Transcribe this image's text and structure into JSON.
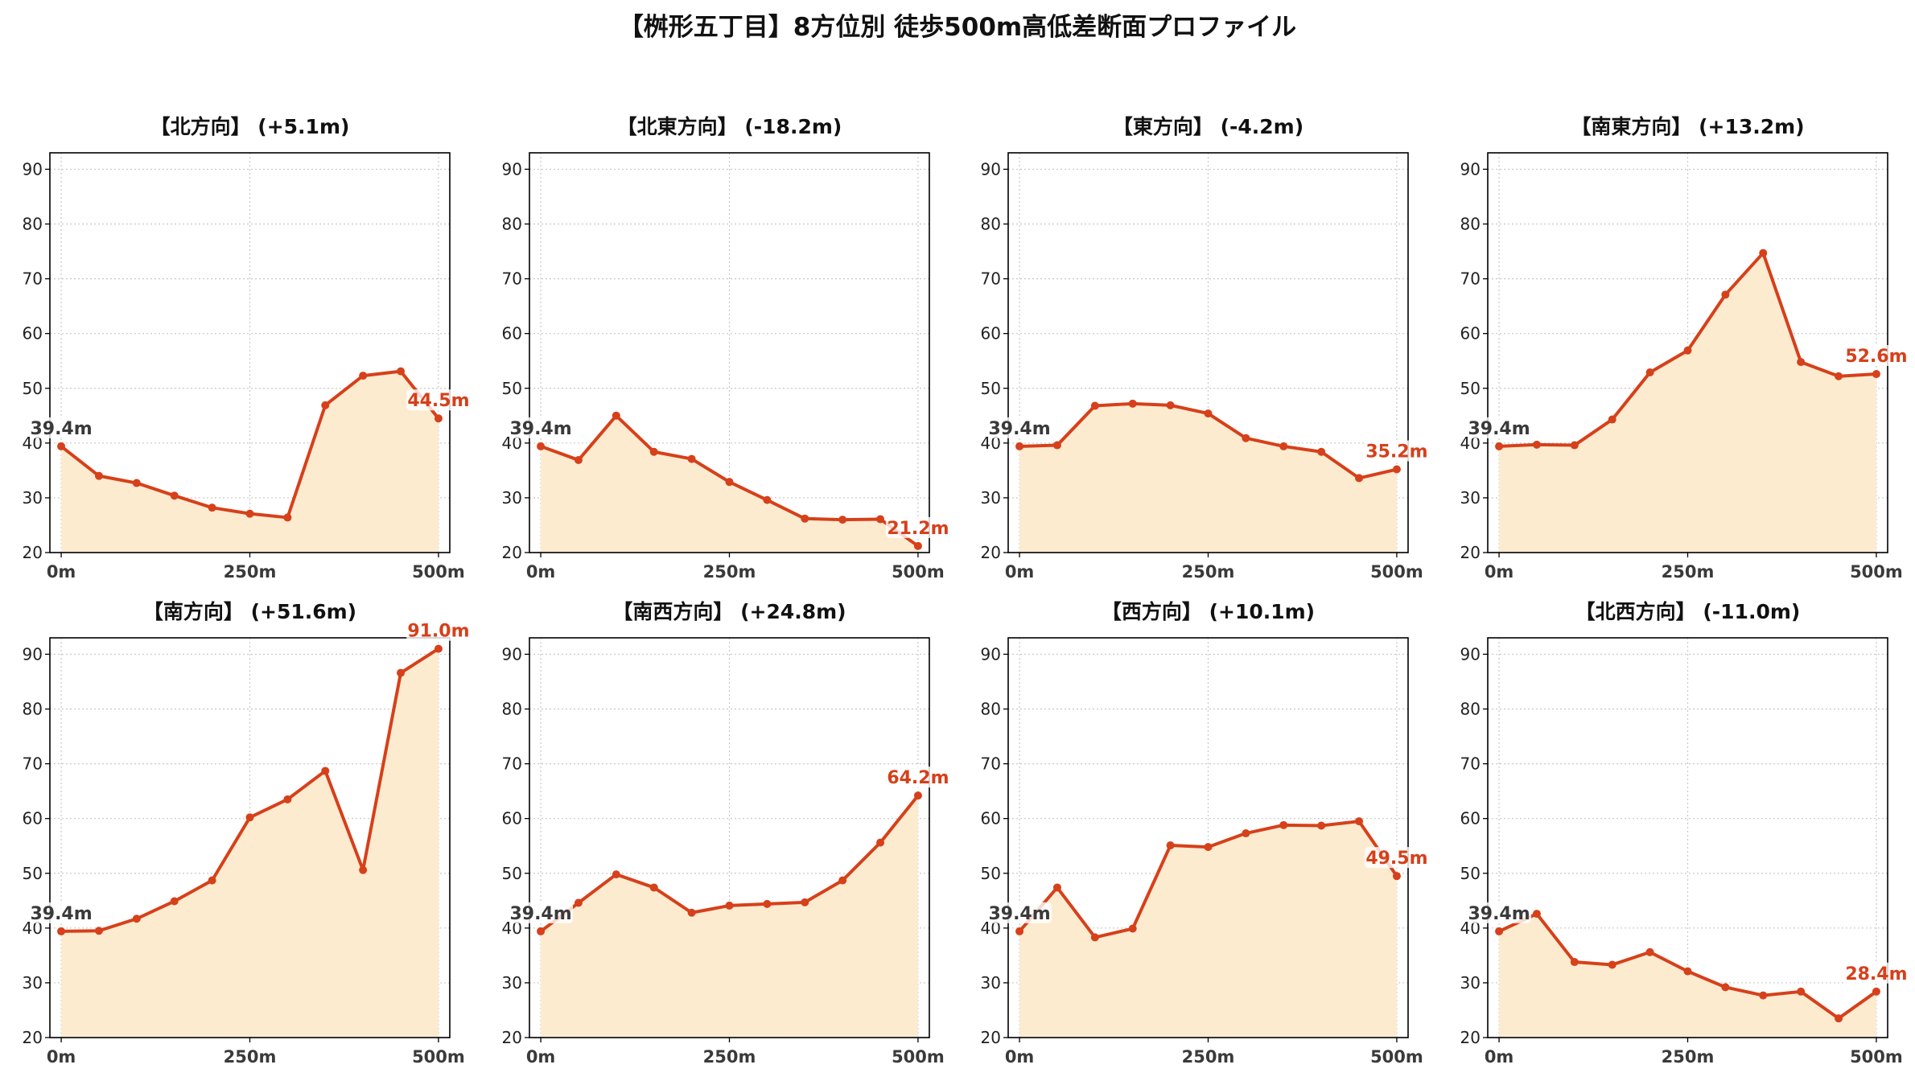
{
  "figure": {
    "title": "【桝形五丁目】8方位別 徒歩500m高低差断面プロファイル"
  },
  "colors": {
    "line": "#d6401a",
    "fill": "#fdebd0",
    "start_label": "#3a3a3a",
    "end_label": "#d6401a",
    "grid": "#c8c8c8",
    "axis": "#000000"
  },
  "chart_data": [
    {
      "type": "area",
      "title": "【北方向】 (+5.1m)",
      "x": [
        0,
        50,
        100,
        150,
        200,
        250,
        300,
        350,
        400,
        450,
        500
      ],
      "values": [
        39.4,
        34.0,
        32.7,
        30.4,
        28.2,
        27.1,
        26.4,
        46.9,
        52.3,
        53.1,
        44.5
      ],
      "start_label": "39.4m",
      "end_label": "44.5m",
      "xticks": [
        "0m",
        "250m",
        "500m"
      ],
      "yticks": [
        "20",
        "30",
        "40",
        "50",
        "60",
        "70",
        "80",
        "90"
      ],
      "xlim": [
        0,
        500
      ],
      "ylim": [
        20,
        93
      ],
      "grid": true
    },
    {
      "type": "area",
      "title": "【北東方向】 (-18.2m)",
      "x": [
        0,
        50,
        100,
        150,
        200,
        250,
        300,
        350,
        400,
        450,
        500
      ],
      "values": [
        39.4,
        36.9,
        45.0,
        38.4,
        37.1,
        32.9,
        29.6,
        26.2,
        26.0,
        26.1,
        21.2
      ],
      "start_label": "39.4m",
      "end_label": "21.2m",
      "xticks": [
        "0m",
        "250m",
        "500m"
      ],
      "yticks": [
        "20",
        "30",
        "40",
        "50",
        "60",
        "70",
        "80",
        "90"
      ],
      "xlim": [
        0,
        500
      ],
      "ylim": [
        20,
        93
      ],
      "grid": true
    },
    {
      "type": "area",
      "title": "【東方向】 (-4.2m)",
      "x": [
        0,
        50,
        100,
        150,
        200,
        250,
        300,
        350,
        400,
        450,
        500
      ],
      "values": [
        39.4,
        39.6,
        46.8,
        47.2,
        46.9,
        45.4,
        40.9,
        39.4,
        38.4,
        33.6,
        35.2
      ],
      "start_label": "39.4m",
      "end_label": "35.2m",
      "xticks": [
        "0m",
        "250m",
        "500m"
      ],
      "yticks": [
        "20",
        "30",
        "40",
        "50",
        "60",
        "70",
        "80",
        "90"
      ],
      "xlim": [
        0,
        500
      ],
      "ylim": [
        20,
        93
      ],
      "grid": true
    },
    {
      "type": "area",
      "title": "【南東方向】 (+13.2m)",
      "x": [
        0,
        50,
        100,
        150,
        200,
        250,
        300,
        350,
        400,
        450,
        500
      ],
      "values": [
        39.4,
        39.7,
        39.6,
        44.3,
        52.9,
        56.9,
        67.1,
        74.7,
        54.8,
        52.2,
        52.6
      ],
      "start_label": "39.4m",
      "end_label": "52.6m",
      "xticks": [
        "0m",
        "250m",
        "500m"
      ],
      "yticks": [
        "20",
        "30",
        "40",
        "50",
        "60",
        "70",
        "80",
        "90"
      ],
      "xlim": [
        0,
        500
      ],
      "ylim": [
        20,
        93
      ],
      "grid": true
    },
    {
      "type": "area",
      "title": "【南方向】 (+51.6m)",
      "x": [
        0,
        50,
        100,
        150,
        200,
        250,
        300,
        350,
        400,
        450,
        500
      ],
      "values": [
        39.4,
        39.5,
        41.7,
        44.9,
        48.7,
        60.2,
        63.5,
        68.7,
        50.6,
        86.6,
        91.0
      ],
      "start_label": "39.4m",
      "end_label": "91.0m",
      "xticks": [
        "0m",
        "250m",
        "500m"
      ],
      "yticks": [
        "20",
        "30",
        "40",
        "50",
        "60",
        "70",
        "80",
        "90"
      ],
      "xlim": [
        0,
        500
      ],
      "ylim": [
        20,
        93
      ],
      "grid": true
    },
    {
      "type": "area",
      "title": "【南西方向】 (+24.8m)",
      "x": [
        0,
        50,
        100,
        150,
        200,
        250,
        300,
        350,
        400,
        450,
        500
      ],
      "values": [
        39.4,
        44.6,
        49.8,
        47.4,
        42.8,
        44.1,
        44.4,
        44.7,
        48.7,
        55.6,
        64.2
      ],
      "start_label": "39.4m",
      "end_label": "64.2m",
      "xticks": [
        "0m",
        "250m",
        "500m"
      ],
      "yticks": [
        "20",
        "30",
        "40",
        "50",
        "60",
        "70",
        "80",
        "90"
      ],
      "xlim": [
        0,
        500
      ],
      "ylim": [
        20,
        93
      ],
      "grid": true
    },
    {
      "type": "area",
      "title": "【西方向】 (+10.1m)",
      "x": [
        0,
        50,
        100,
        150,
        200,
        250,
        300,
        350,
        400,
        450,
        500
      ],
      "values": [
        39.4,
        47.4,
        38.3,
        39.9,
        55.1,
        54.8,
        57.3,
        58.8,
        58.7,
        59.5,
        49.5
      ],
      "start_label": "39.4m",
      "end_label": "49.5m",
      "xticks": [
        "0m",
        "250m",
        "500m"
      ],
      "yticks": [
        "20",
        "30",
        "40",
        "50",
        "60",
        "70",
        "80",
        "90"
      ],
      "xlim": [
        0,
        500
      ],
      "ylim": [
        20,
        93
      ],
      "grid": true
    },
    {
      "type": "area",
      "title": "【北西方向】 (-11.0m)",
      "x": [
        0,
        50,
        100,
        150,
        200,
        250,
        300,
        350,
        400,
        450,
        500
      ],
      "values": [
        39.4,
        42.6,
        33.8,
        33.3,
        35.6,
        32.1,
        29.2,
        27.7,
        28.4,
        23.5,
        28.4
      ],
      "start_label": "39.4m",
      "end_label": "28.4m",
      "xticks": [
        "0m",
        "250m",
        "500m"
      ],
      "yticks": [
        "20",
        "30",
        "40",
        "50",
        "60",
        "70",
        "80",
        "90"
      ],
      "xlim": [
        0,
        500
      ],
      "ylim": [
        20,
        93
      ],
      "grid": true
    }
  ]
}
